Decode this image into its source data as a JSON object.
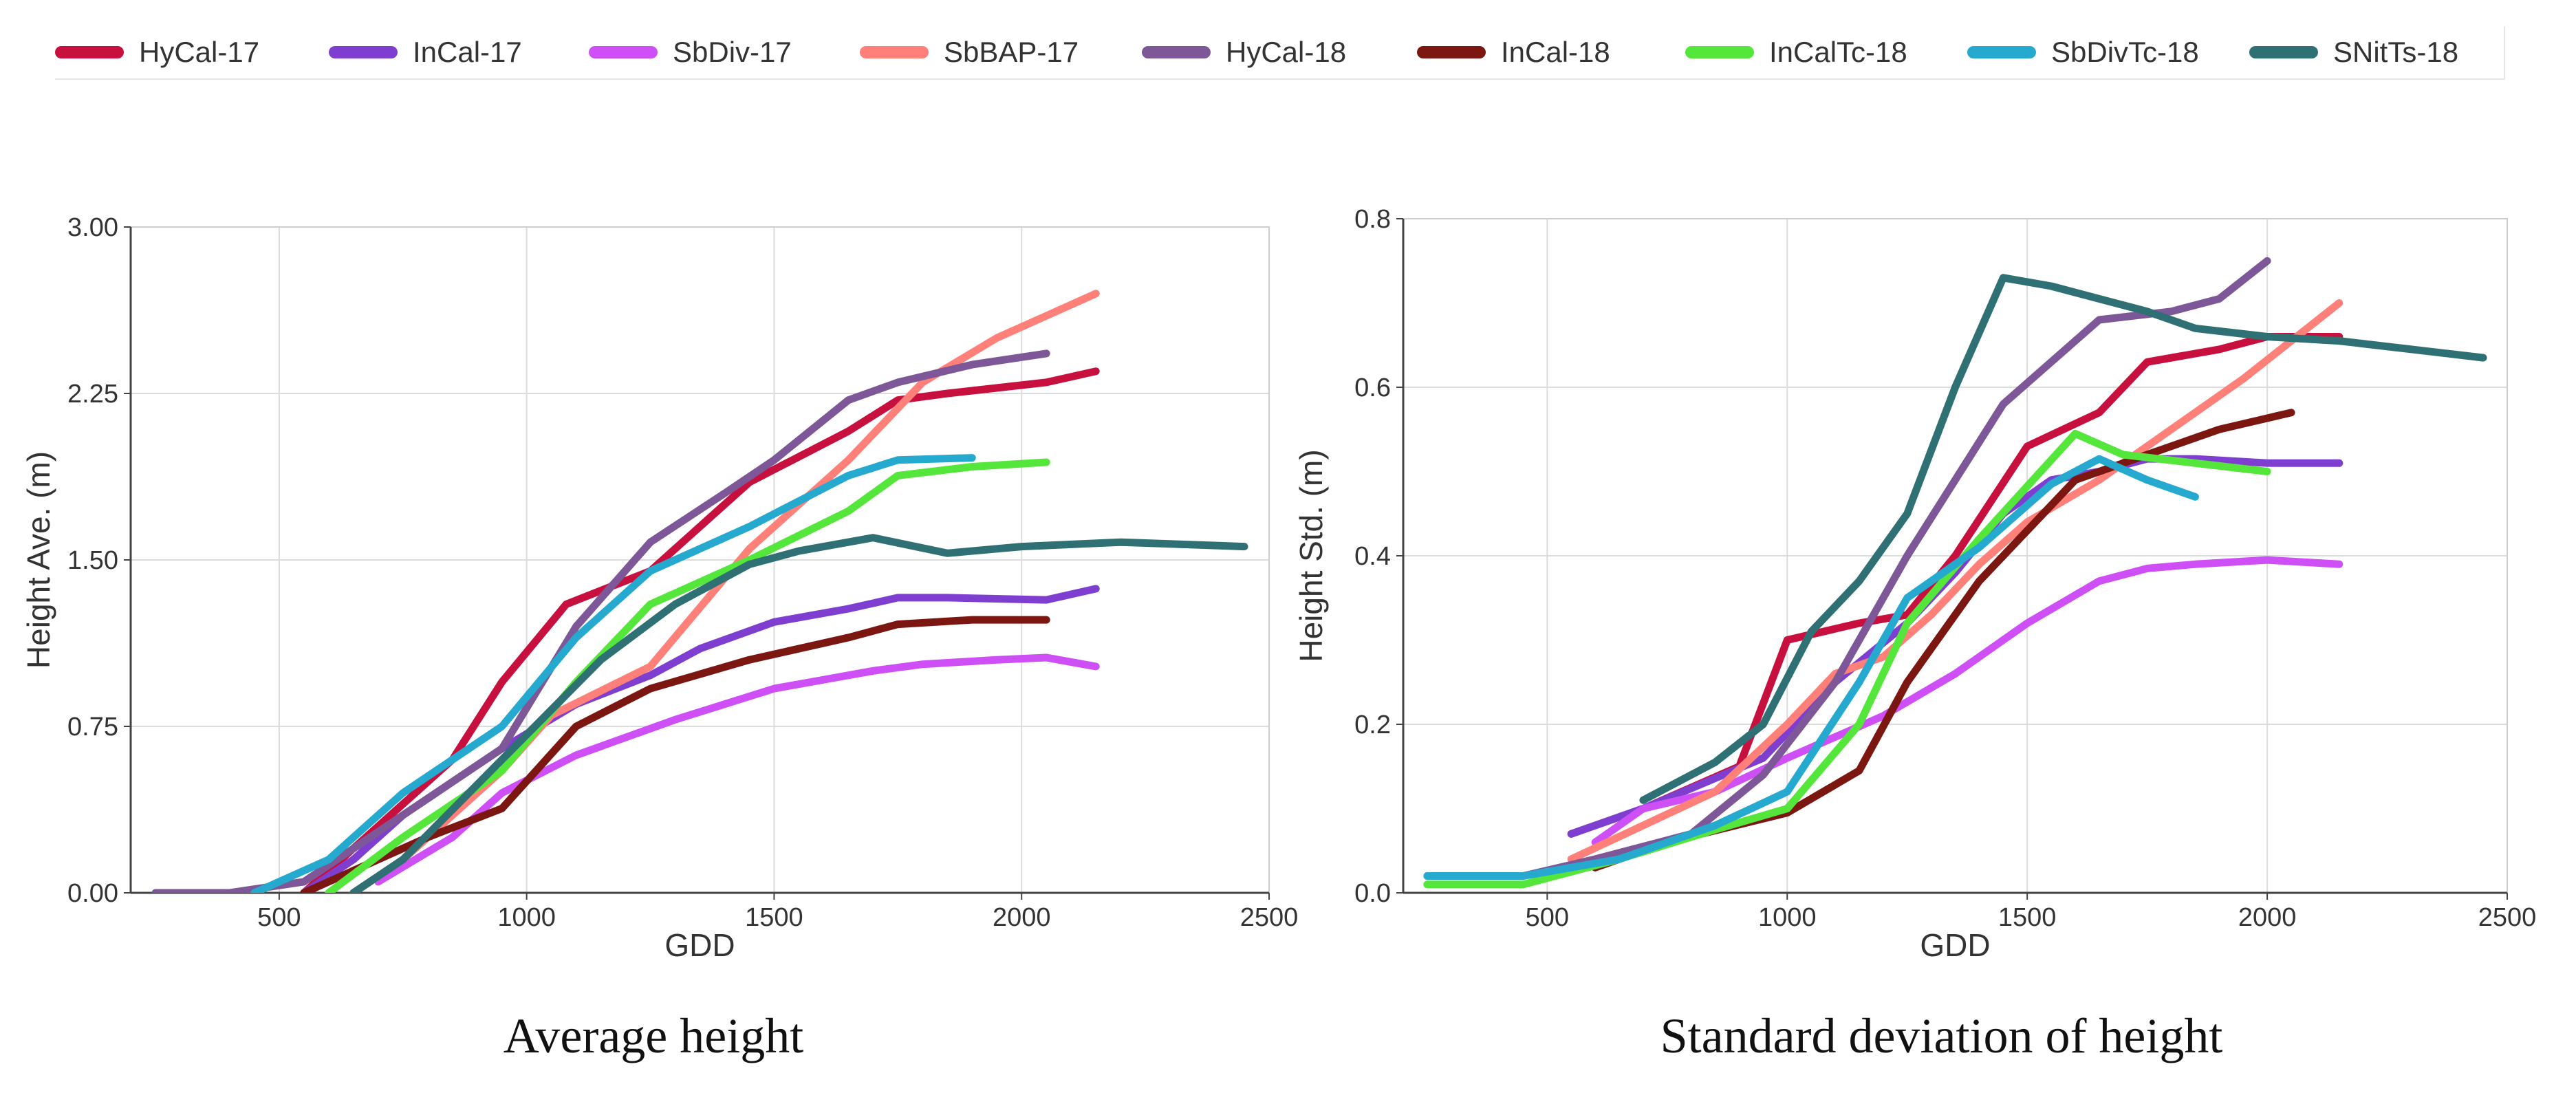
{
  "legend": [
    {
      "name": "HyCal-17",
      "color": "#c8103e"
    },
    {
      "name": "InCal-17",
      "color": "#7e3fd0"
    },
    {
      "name": "SbDiv-17",
      "color": "#cf4ff7"
    },
    {
      "name": "SbBAP-17",
      "color": "#ff7f79"
    },
    {
      "name": "HyCal-18",
      "color": "#7d5797"
    },
    {
      "name": "InCal-18",
      "color": "#7c1610"
    },
    {
      "name": "InCalTc-18",
      "color": "#55e63b"
    },
    {
      "name": "SbDivTc-18",
      "color": "#26a9cf"
    },
    {
      "name": "SNitTs-18",
      "color": "#2f7074"
    }
  ],
  "captions": {
    "left": "Average height",
    "right": "Standard deviation of height"
  },
  "chart_data": [
    {
      "type": "line",
      "xlabel": "GDD",
      "ylabel": "Height Ave. (m)",
      "xlim": [
        200,
        2500
      ],
      "ylim": [
        0,
        3.0
      ],
      "xticks": [
        "500",
        "1000",
        "1500",
        "2000",
        "2500"
      ],
      "yticks": [
        "0.00",
        "0.75",
        "1.50",
        "2.25",
        "3.00"
      ],
      "grid": true,
      "series": [
        {
          "name": "HyCal-17",
          "color": "#c8103e",
          "x": [
            550,
            600,
            700,
            850,
            950,
            1080,
            1250,
            1450,
            1650,
            1750,
            1850,
            2050,
            2150
          ],
          "y": [
            0.0,
            0.1,
            0.3,
            0.6,
            0.95,
            1.3,
            1.45,
            1.85,
            2.08,
            2.22,
            2.25,
            2.3,
            2.35
          ]
        },
        {
          "name": "InCal-17",
          "color": "#7e3fd0",
          "x": [
            550,
            650,
            750,
            850,
            950,
            1100,
            1250,
            1350,
            1500,
            1650,
            1750,
            1850,
            2050,
            2150
          ],
          "y": [
            0.0,
            0.15,
            0.35,
            0.5,
            0.65,
            0.85,
            0.98,
            1.1,
            1.22,
            1.28,
            1.33,
            1.33,
            1.32,
            1.37
          ]
        },
        {
          "name": "SbDiv-17",
          "color": "#cf4ff7",
          "x": [
            700,
            850,
            950,
            1100,
            1300,
            1500,
            1700,
            1800,
            1950,
            2050,
            2150
          ],
          "y": [
            0.05,
            0.25,
            0.45,
            0.62,
            0.78,
            0.92,
            1.0,
            1.03,
            1.05,
            1.06,
            1.02
          ]
        },
        {
          "name": "SbBAP-17",
          "color": "#ff7f79",
          "x": [
            650,
            750,
            850,
            950,
            1050,
            1250,
            1450,
            1650,
            1800,
            1950,
            2050,
            2150
          ],
          "y": [
            0.0,
            0.15,
            0.35,
            0.55,
            0.8,
            1.02,
            1.55,
            1.95,
            2.3,
            2.5,
            2.6,
            2.7
          ]
        },
        {
          "name": "HyCal-18",
          "color": "#7d5797",
          "x": [
            250,
            300,
            400,
            550,
            650,
            750,
            950,
            1100,
            1250,
            1400,
            1500,
            1650,
            1750,
            1900,
            2050
          ],
          "y": [
            0.0,
            0.0,
            0.0,
            0.05,
            0.2,
            0.35,
            0.65,
            1.2,
            1.58,
            1.8,
            1.95,
            2.22,
            2.3,
            2.38,
            2.43
          ]
        },
        {
          "name": "InCal-18",
          "color": "#7c1610",
          "x": [
            550,
            650,
            800,
            950,
            1100,
            1250,
            1450,
            1650,
            1750,
            1900,
            2050
          ],
          "y": [
            0.0,
            0.1,
            0.25,
            0.38,
            0.75,
            0.92,
            1.05,
            1.15,
            1.21,
            1.23,
            1.23
          ]
        },
        {
          "name": "InCalTc-18",
          "color": "#55e63b",
          "x": [
            600,
            750,
            950,
            1100,
            1250,
            1450,
            1650,
            1750,
            1900,
            2050
          ],
          "y": [
            0.0,
            0.25,
            0.55,
            0.95,
            1.3,
            1.5,
            1.72,
            1.88,
            1.92,
            1.94
          ]
        },
        {
          "name": "SbDivTc-18",
          "color": "#26a9cf",
          "x": [
            450,
            600,
            750,
            950,
            1100,
            1250,
            1450,
            1650,
            1750,
            1900
          ],
          "y": [
            0.0,
            0.15,
            0.45,
            0.75,
            1.15,
            1.45,
            1.65,
            1.88,
            1.95,
            1.96
          ]
        },
        {
          "name": "SNitTs-18",
          "color": "#2f7074",
          "x": [
            650,
            750,
            950,
            1150,
            1300,
            1450,
            1550,
            1700,
            1850,
            2000,
            2200,
            2450
          ],
          "y": [
            0.0,
            0.15,
            0.6,
            1.05,
            1.3,
            1.48,
            1.54,
            1.6,
            1.53,
            1.56,
            1.58,
            1.56
          ]
        }
      ]
    },
    {
      "type": "line",
      "xlabel": "GDD",
      "ylabel": "Height Std. (m)",
      "xlim": [
        200,
        2500
      ],
      "ylim": [
        0,
        0.8
      ],
      "xticks": [
        "500",
        "1000",
        "1500",
        "2000",
        "2500"
      ],
      "yticks": [
        "0.0",
        "0.2",
        "0.4",
        "0.6",
        "0.8"
      ],
      "grid": true,
      "series": [
        {
          "name": "HyCal-17",
          "color": "#c8103e",
          "x": [
            550,
            700,
            900,
            1000,
            1150,
            1250,
            1350,
            1500,
            1650,
            1750,
            1900,
            2000,
            2150
          ],
          "y": [
            0.07,
            0.1,
            0.15,
            0.3,
            0.32,
            0.33,
            0.4,
            0.53,
            0.57,
            0.63,
            0.645,
            0.66,
            0.66
          ]
        },
        {
          "name": "InCal-17",
          "color": "#7e3fd0",
          "x": [
            550,
            700,
            950,
            1100,
            1250,
            1350,
            1450,
            1550,
            1650,
            1750,
            1850,
            2000,
            2150
          ],
          "y": [
            0.07,
            0.1,
            0.16,
            0.25,
            0.32,
            0.38,
            0.45,
            0.49,
            0.5,
            0.515,
            0.515,
            0.51,
            0.51
          ]
        },
        {
          "name": "SbDiv-17",
          "color": "#cf4ff7",
          "x": [
            600,
            700,
            850,
            1000,
            1200,
            1350,
            1500,
            1650,
            1750,
            1850,
            2000,
            2150
          ],
          "y": [
            0.06,
            0.1,
            0.12,
            0.16,
            0.21,
            0.26,
            0.32,
            0.37,
            0.385,
            0.39,
            0.395,
            0.39
          ]
        },
        {
          "name": "SbBAP-17",
          "color": "#ff7f79",
          "x": [
            550,
            700,
            850,
            1000,
            1100,
            1200,
            1300,
            1400,
            1500,
            1650,
            1800,
            1950,
            2150
          ],
          "y": [
            0.04,
            0.08,
            0.12,
            0.2,
            0.26,
            0.28,
            0.33,
            0.39,
            0.44,
            0.49,
            0.55,
            0.61,
            0.7
          ]
        },
        {
          "name": "HyCal-18",
          "color": "#7d5797",
          "x": [
            250,
            450,
            600,
            800,
            950,
            1100,
            1250,
            1450,
            1650,
            1800,
            1900,
            2000
          ],
          "y": [
            0.02,
            0.02,
            0.04,
            0.07,
            0.14,
            0.25,
            0.4,
            0.58,
            0.68,
            0.69,
            0.705,
            0.75
          ]
        },
        {
          "name": "InCal-18",
          "color": "#7c1610",
          "x": [
            600,
            750,
            1000,
            1150,
            1250,
            1400,
            1600,
            1750,
            1900,
            2050
          ],
          "y": [
            0.03,
            0.06,
            0.095,
            0.145,
            0.25,
            0.37,
            0.49,
            0.52,
            0.55,
            0.57
          ]
        },
        {
          "name": "InCalTc-18",
          "color": "#55e63b",
          "x": [
            250,
            450,
            650,
            850,
            1000,
            1150,
            1250,
            1400,
            1600,
            1700,
            1850,
            2000
          ],
          "y": [
            0.01,
            0.01,
            0.04,
            0.075,
            0.1,
            0.2,
            0.32,
            0.42,
            0.545,
            0.52,
            0.51,
            0.5
          ]
        },
        {
          "name": "SbDivTc-18",
          "color": "#26a9cf",
          "x": [
            250,
            450,
            650,
            850,
            1000,
            1150,
            1250,
            1400,
            1550,
            1650,
            1750,
            1850
          ],
          "y": [
            0.02,
            0.02,
            0.04,
            0.08,
            0.12,
            0.25,
            0.35,
            0.41,
            0.485,
            0.515,
            0.49,
            0.47
          ]
        },
        {
          "name": "SNitTs-18",
          "color": "#2f7074",
          "x": [
            700,
            850,
            950,
            1050,
            1150,
            1250,
            1350,
            1450,
            1550,
            1650,
            1750,
            1850,
            2000,
            2150,
            2450
          ],
          "y": [
            0.11,
            0.155,
            0.2,
            0.31,
            0.37,
            0.45,
            0.6,
            0.73,
            0.72,
            0.705,
            0.69,
            0.67,
            0.66,
            0.655,
            0.635
          ]
        }
      ]
    }
  ]
}
